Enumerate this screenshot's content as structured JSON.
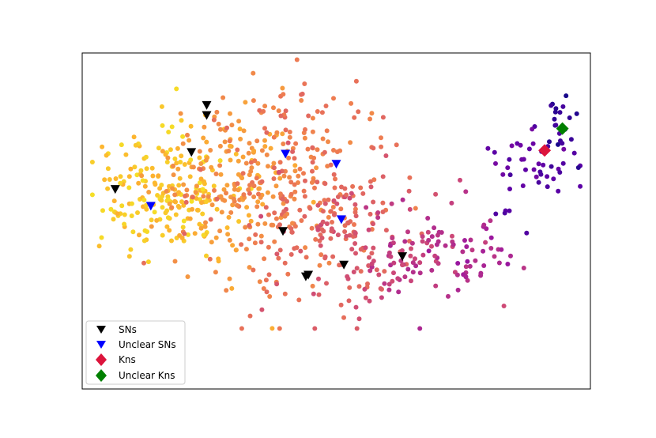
{
  "chart_data": {
    "type": "scatter",
    "title": "",
    "xlabel": "",
    "ylabel": "",
    "xlim": [
      0,
      100
    ],
    "ylim": [
      0,
      100
    ],
    "grid": false,
    "axis_ticks": false,
    "legend_placement": "lower-left",
    "colormap": "plasma",
    "colormap_stops": [
      "#0d0887",
      "#5c01a6",
      "#9c179e",
      "#cc4778",
      "#ed7953",
      "#fdb42f",
      "#f0f921"
    ],
    "background_point_count_approx": 900,
    "background_point_clusters": [
      {
        "cx": 16,
        "cy": 58,
        "sx": 7,
        "sy": 10,
        "n": 200,
        "c": 0.88
      },
      {
        "cx": 28,
        "cy": 62,
        "sx": 7,
        "sy": 12,
        "n": 170,
        "c": 0.76
      },
      {
        "cx": 42,
        "cy": 60,
        "sx": 9,
        "sy": 15,
        "n": 240,
        "c": 0.66
      },
      {
        "cx": 52,
        "cy": 43,
        "sx": 7,
        "sy": 11,
        "n": 110,
        "c": 0.57
      },
      {
        "cx": 66,
        "cy": 42,
        "sx": 6,
        "sy": 8,
        "n": 80,
        "c": 0.45
      },
      {
        "cx": 76,
        "cy": 41,
        "sx": 5,
        "sy": 5,
        "n": 35,
        "c": 0.38
      },
      {
        "cx": 88,
        "cy": 65,
        "sx": 5,
        "sy": 7,
        "n": 45,
        "c": 0.18
      },
      {
        "cx": 94,
        "cy": 78,
        "sx": 2,
        "sy": 5,
        "n": 22,
        "c": 0.08
      }
    ],
    "series": [
      {
        "name": "SNs",
        "marker": "triangle-down",
        "color": "#000000",
        "points": [
          [
            24.5,
            84.5
          ],
          [
            24.5,
            81.5
          ],
          [
            21.5,
            70.5
          ],
          [
            6.5,
            59.5
          ],
          [
            39.5,
            47.0
          ],
          [
            44.5,
            34.0
          ],
          [
            51.5,
            37.0
          ],
          [
            44.0,
            33.5
          ],
          [
            63.0,
            39.5
          ]
        ]
      },
      {
        "name": "Unclear SNs",
        "marker": "triangle-down",
        "color": "#0000ff",
        "points": [
          [
            13.5,
            54.5
          ],
          [
            40.0,
            70.0
          ],
          [
            50.0,
            67.0
          ],
          [
            51.0,
            50.5
          ]
        ]
      },
      {
        "name": "Kns",
        "marker": "diamond",
        "color": "#dc143c",
        "points": [
          [
            91.0,
            71.0
          ]
        ]
      },
      {
        "name": "Unclear Kns",
        "marker": "diamond",
        "color": "#008000",
        "points": [
          [
            94.5,
            77.5
          ]
        ]
      }
    ]
  }
}
